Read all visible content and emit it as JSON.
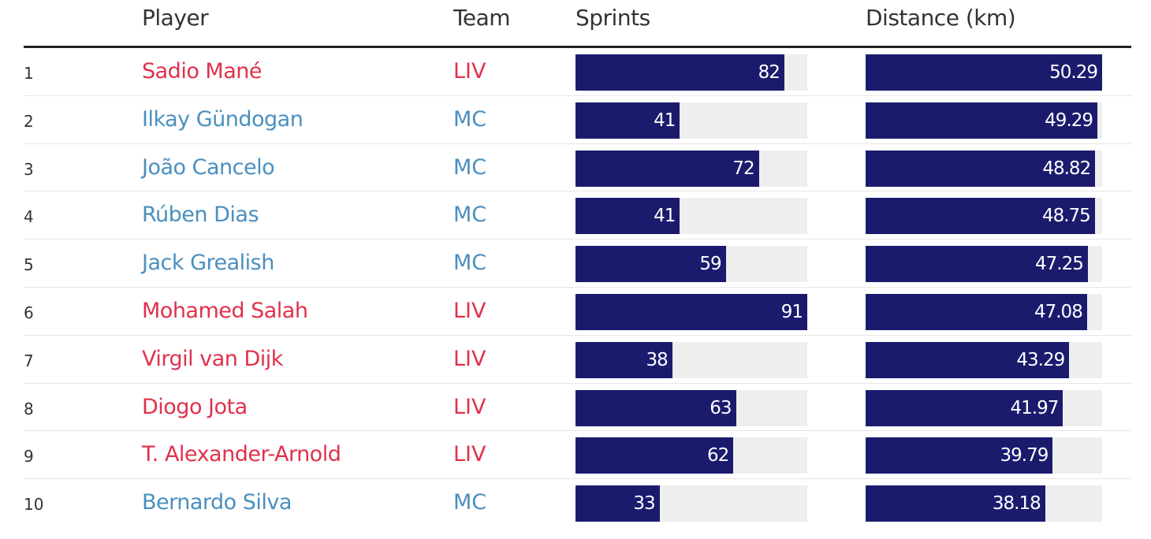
{
  "headers": {
    "player": "Player",
    "team": "Team",
    "sprints": "Sprints",
    "distance": "Distance (km)"
  },
  "colors": {
    "LIV": "#e0314b",
    "MC": "#4a8fbf",
    "bar": "#1b1b6e",
    "track": "#eeeeee"
  },
  "chart_data": {
    "type": "table",
    "columns": [
      "",
      "Player",
      "Team",
      "Sprints",
      "Distance (km)"
    ],
    "sprints_max": 91,
    "distance_max": 50.29,
    "rows": [
      {
        "rank": "1",
        "player": "Sadio Mané",
        "team": "LIV",
        "sprints": 82,
        "sprints_label": "82",
        "distance": 50.29,
        "distance_label": "50.29"
      },
      {
        "rank": "2",
        "player": "Ilkay Gündogan",
        "team": "MC",
        "sprints": 41,
        "sprints_label": "41",
        "distance": 49.29,
        "distance_label": "49.29"
      },
      {
        "rank": "3",
        "player": "João Cancelo",
        "team": "MC",
        "sprints": 72,
        "sprints_label": "72",
        "distance": 48.82,
        "distance_label": "48.82"
      },
      {
        "rank": "4",
        "player": "Rúben Dias",
        "team": "MC",
        "sprints": 41,
        "sprints_label": "41",
        "distance": 48.75,
        "distance_label": "48.75"
      },
      {
        "rank": "5",
        "player": "Jack Grealish",
        "team": "MC",
        "sprints": 59,
        "sprints_label": "59",
        "distance": 47.25,
        "distance_label": "47.25"
      },
      {
        "rank": "6",
        "player": "Mohamed Salah",
        "team": "LIV",
        "sprints": 91,
        "sprints_label": "91",
        "distance": 47.08,
        "distance_label": "47.08"
      },
      {
        "rank": "7",
        "player": "Virgil van Dijk",
        "team": "LIV",
        "sprints": 38,
        "sprints_label": "38",
        "distance": 43.29,
        "distance_label": "43.29"
      },
      {
        "rank": "8",
        "player": "Diogo Jota",
        "team": "LIV",
        "sprints": 63,
        "sprints_label": "63",
        "distance": 41.97,
        "distance_label": "41.97"
      },
      {
        "rank": "9",
        "player": "T. Alexander-Arnold",
        "team": "LIV",
        "sprints": 62,
        "sprints_label": "62",
        "distance": 39.79,
        "distance_label": "39.79"
      },
      {
        "rank": "10",
        "player": "Bernardo Silva",
        "team": "MC",
        "sprints": 33,
        "sprints_label": "33",
        "distance": 38.18,
        "distance_label": "38.18"
      }
    ]
  }
}
